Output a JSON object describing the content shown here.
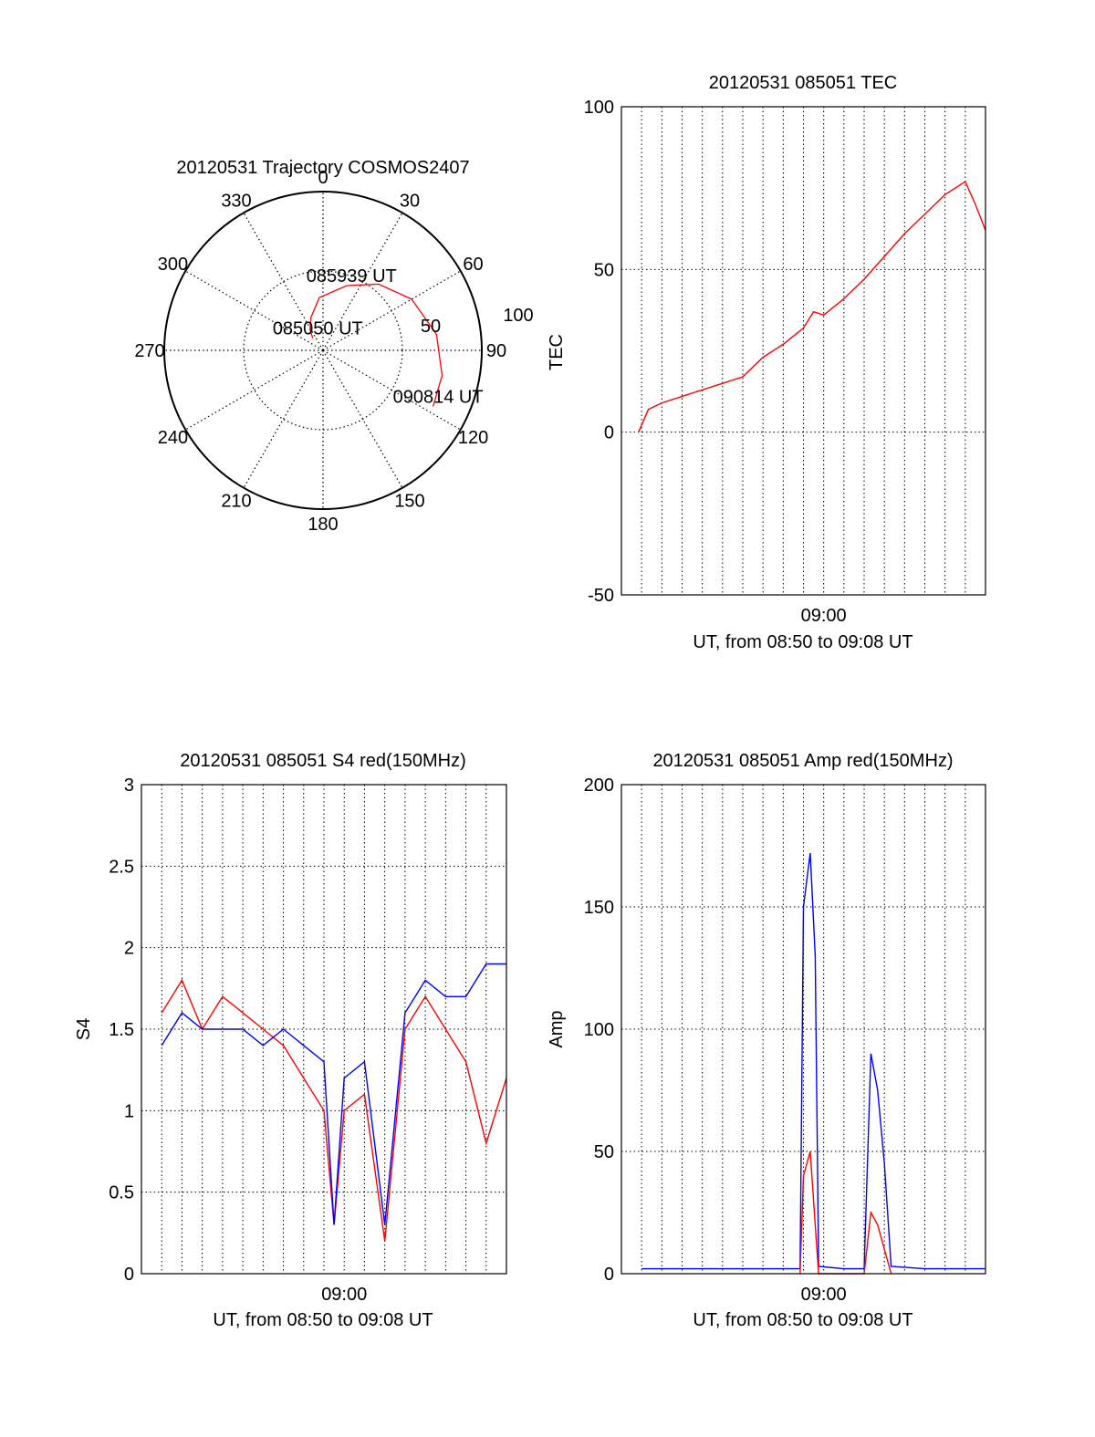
{
  "colors": {
    "red_series": "#ff0000",
    "blue_series": "#0000ff",
    "axis": "#000000",
    "grid": "#000000"
  },
  "chart_data": [
    {
      "type": "polar",
      "title": "20120531 Trajectory COSMOS2407",
      "angle_labels": [
        "0",
        "30",
        "60",
        "90",
        "120",
        "150",
        "180",
        "210",
        "240",
        "270",
        "300",
        "330"
      ],
      "radius_labels": [
        "50",
        "100"
      ],
      "grid": true,
      "series": [
        {
          "color": "#ff0000",
          "points_az_el": [
            [
              -40,
              81
            ],
            [
              -32,
              76
            ],
            [
              -20,
              70
            ],
            [
              -4,
              60
            ],
            [
              20,
              51
            ],
            [
              40,
              41
            ],
            [
              60,
              32
            ],
            [
              82,
              25
            ],
            [
              102,
              21
            ],
            [
              117,
              20
            ]
          ]
        }
      ],
      "annotations": [
        {
          "text": "085050 UT",
          "az": -40,
          "el": 81
        },
        {
          "text": "085939 UT",
          "az": 20,
          "el": 51
        },
        {
          "text": "090814 UT",
          "az": 117,
          "el": 20
        }
      ]
    },
    {
      "type": "line",
      "title": "20120531 085051 TEC",
      "xlabel": "UT, from 08:50 to 09:08 UT",
      "ylabel": "TEC",
      "xlim": [
        "08:50:00",
        "09:08:00"
      ],
      "ylim": [
        -50,
        100
      ],
      "yticks": [
        -50,
        0,
        50,
        100
      ],
      "xticks": [
        {
          "value": "09:00:00",
          "label": "09:00"
        }
      ],
      "grid": true,
      "series": [
        {
          "color": "#ff0000",
          "x": [
            "08:50:51",
            "08:51:20",
            "08:52:00",
            "08:53:00",
            "08:54:00",
            "08:55:00",
            "08:56:00",
            "08:57:00",
            "08:58:00",
            "08:59:00",
            "08:59:30",
            "09:00:00",
            "09:01:00",
            "09:02:00",
            "09:03:00",
            "09:04:00",
            "09:05:00",
            "09:06:00",
            "09:07:00",
            "09:07:30",
            "09:08:00"
          ],
          "y": [
            0,
            7,
            9,
            11,
            13,
            15,
            17,
            23,
            27,
            32,
            37,
            36,
            41,
            47,
            54,
            61,
            67,
            73,
            77,
            70,
            62
          ]
        }
      ]
    },
    {
      "type": "line",
      "title": "20120531 085051 S4 red(150MHz)",
      "xlabel": "UT, from 08:50 to 09:08 UT",
      "ylabel": "S4",
      "xlim": [
        "08:50:00",
        "09:08:00"
      ],
      "ylim": [
        0,
        3
      ],
      "yticks": [
        0,
        0.5,
        1,
        1.5,
        2,
        2.5,
        3
      ],
      "xticks": [
        {
          "value": "09:00:00",
          "label": "09:00"
        }
      ],
      "grid": true,
      "series": [
        {
          "color": "#ff0000",
          "x": [
            "08:51:00",
            "08:52:00",
            "08:53:00",
            "08:54:00",
            "08:55:00",
            "08:56:00",
            "08:57:00",
            "08:58:00",
            "08:59:00",
            "08:59:30",
            "09:00:00",
            "09:01:00",
            "09:02:00",
            "09:03:00",
            "09:04:00",
            "09:05:00",
            "09:06:00",
            "09:07:00",
            "09:08:00"
          ],
          "y": [
            1.6,
            1.8,
            1.5,
            1.7,
            1.6,
            1.5,
            1.4,
            1.2,
            1.0,
            0.3,
            1.0,
            1.1,
            0.2,
            1.5,
            1.7,
            1.5,
            1.3,
            0.8,
            1.2
          ]
        },
        {
          "color": "#0000ff",
          "x": [
            "08:51:00",
            "08:52:00",
            "08:53:00",
            "08:54:00",
            "08:55:00",
            "08:56:00",
            "08:57:00",
            "08:58:00",
            "08:59:00",
            "08:59:30",
            "09:00:00",
            "09:01:00",
            "09:02:00",
            "09:03:00",
            "09:04:00",
            "09:05:00",
            "09:06:00",
            "09:07:00",
            "09:08:00"
          ],
          "y": [
            1.4,
            1.6,
            1.5,
            1.5,
            1.5,
            1.4,
            1.5,
            1.4,
            1.3,
            0.3,
            1.2,
            1.3,
            0.3,
            1.6,
            1.8,
            1.7,
            1.7,
            1.9,
            1.9
          ]
        }
      ]
    },
    {
      "type": "line",
      "title": "20120531 085051 Amp red(150MHz)",
      "xlabel": "UT, from 08:50 to 09:08 UT",
      "ylabel": "Amp",
      "xlim": [
        "08:50:00",
        "09:08:00"
      ],
      "ylim": [
        0,
        200
      ],
      "yticks": [
        0,
        50,
        100,
        150,
        200
      ],
      "xticks": [
        {
          "value": "09:00:00",
          "label": "09:00"
        }
      ],
      "grid": true,
      "series": [
        {
          "color": "#0000ff",
          "x": [
            "08:51:00",
            "08:53:00",
            "08:55:00",
            "08:57:00",
            "08:58:50",
            "08:59:00",
            "08:59:20",
            "08:59:35",
            "08:59:45",
            "09:01:00",
            "09:02:00",
            "09:02:20",
            "09:02:40",
            "09:03:00",
            "09:03:20",
            "09:05:00",
            "09:07:00",
            "09:08:00"
          ],
          "y": [
            2,
            2,
            2,
            2,
            2,
            150,
            172,
            130,
            3,
            2,
            2,
            90,
            75,
            45,
            3,
            2,
            2,
            2
          ]
        },
        {
          "color": "#ff0000",
          "x": [
            "08:58:50",
            "08:59:00",
            "08:59:20",
            "08:59:35",
            "08:59:45",
            "09:02:00",
            "09:02:20",
            "09:02:40",
            "09:03:00",
            "09:03:20"
          ],
          "y": [
            0,
            40,
            50,
            20,
            0,
            0,
            25,
            20,
            10,
            0
          ]
        }
      ]
    }
  ]
}
